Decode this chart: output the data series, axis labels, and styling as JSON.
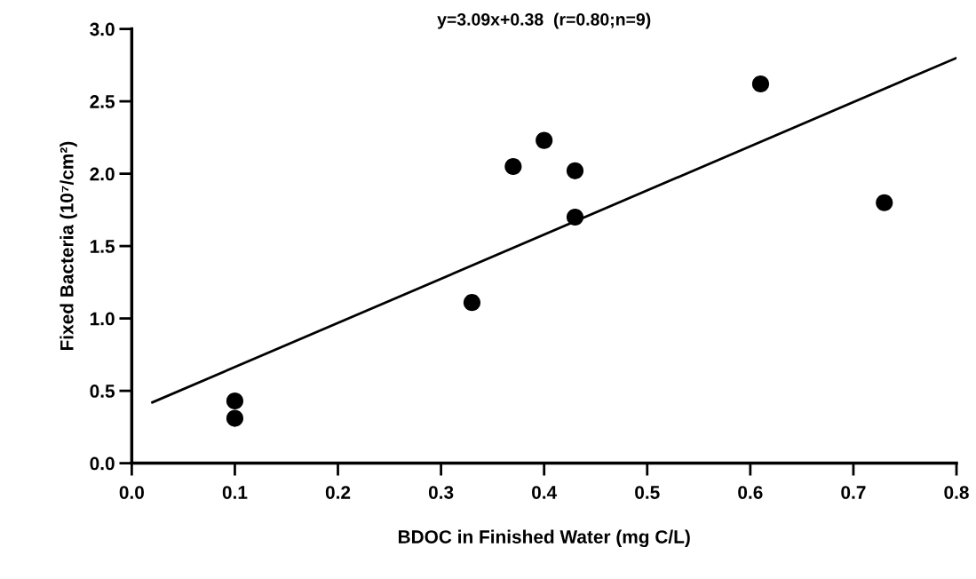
{
  "chart_data": {
    "type": "scatter",
    "xlabel": "BDOC in Finished Water (mg C/L)",
    "ylabel": "Fixed Bacteria (10⁷/cm²)",
    "annotations": [
      "y=3.09x+0.38  (r=0.80;n=9)"
    ],
    "series": [
      {
        "marker": "circle",
        "color": "#000000",
        "x": [
          0.1,
          0.1,
          0.33,
          0.37,
          0.4,
          0.43,
          0.43,
          0.61,
          0.73
        ],
        "values": [
          0.43,
          0.31,
          1.11,
          2.05,
          2.23,
          2.02,
          1.7,
          2.62,
          1.8
        ]
      },
      {
        "type": "line",
        "color": "#000000",
        "x": [
          0.02,
          0.8
        ],
        "values": [
          0.42,
          2.8
        ]
      }
    ],
    "xlim": [
      0,
      0.8
    ],
    "xticks": [
      {
        "value": 0,
        "label": "0.0"
      },
      0.1,
      0.2,
      0.3,
      0.4,
      0.5,
      0.6,
      0.7,
      0.8
    ],
    "ylim": [
      0,
      3.0
    ],
    "yticks": [
      {
        "value": 0,
        "label": "0.0"
      },
      0.5,
      {
        "value": 1,
        "label": "1.0"
      },
      1.5,
      {
        "value": 2,
        "label": "2.0"
      },
      2.5,
      {
        "value": 3,
        "label": "3.0"
      }
    ],
    "grid": false,
    "legend": false
  }
}
